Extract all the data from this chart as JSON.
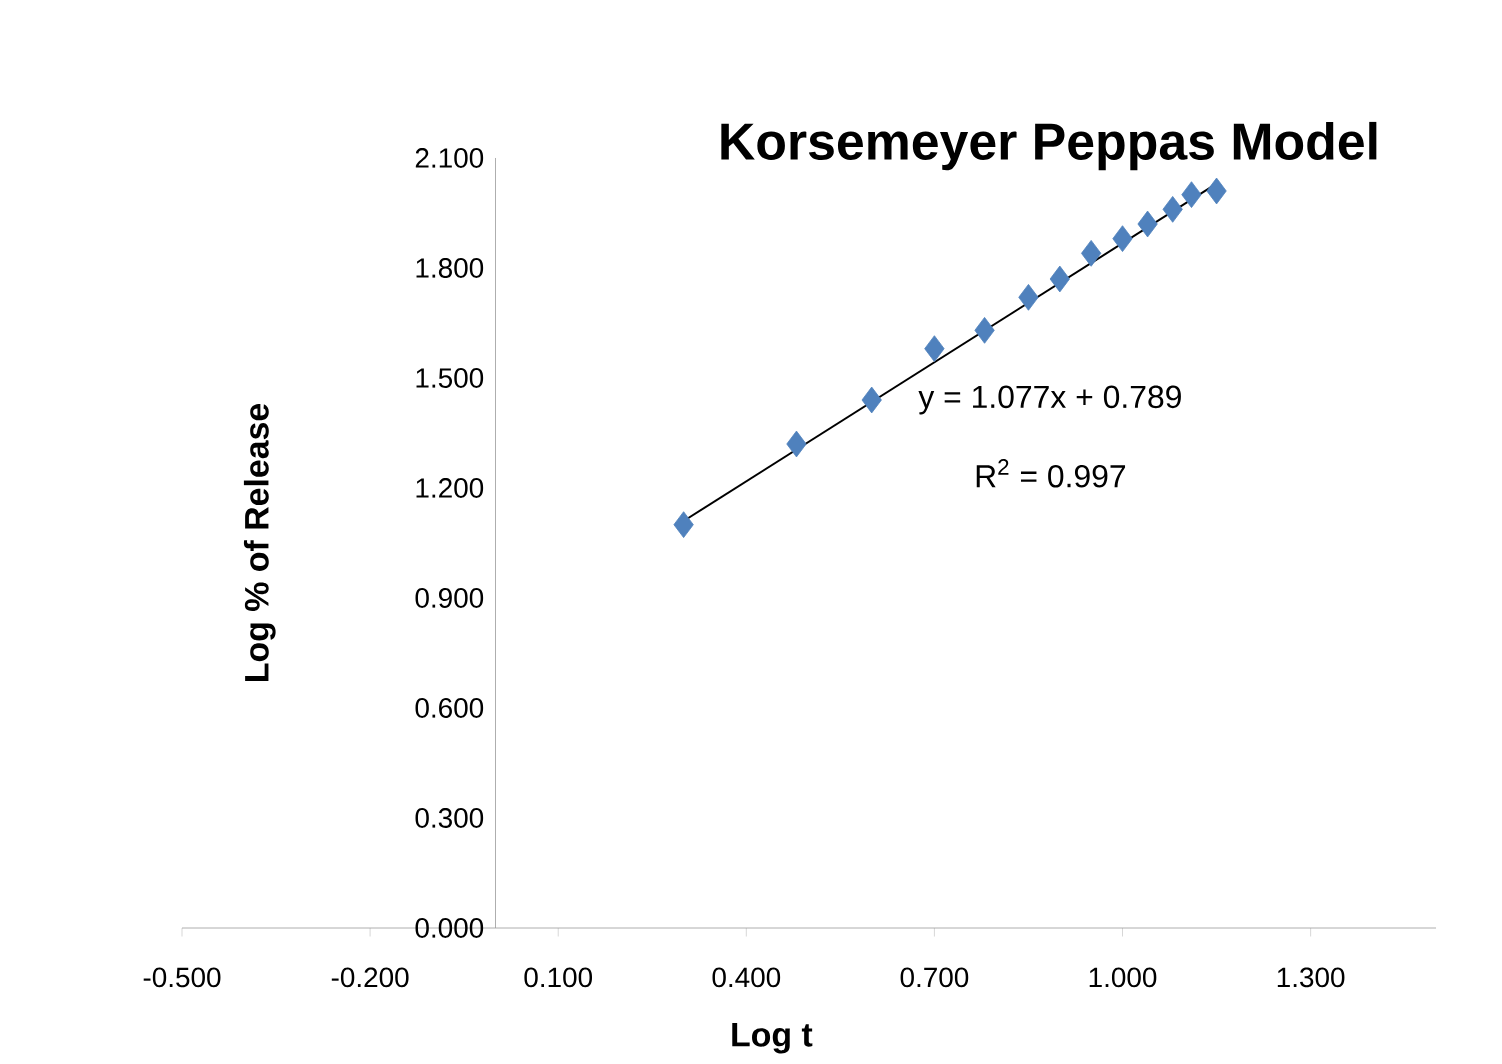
{
  "chart_data": {
    "type": "scatter",
    "title": "Korsemeyer Peppas Model",
    "xlabel": "Log t",
    "ylabel": "Log % of Release",
    "x": [
      0.3,
      0.48,
      0.6,
      0.7,
      0.78,
      0.85,
      0.9,
      0.95,
      1.0,
      1.04,
      1.08,
      1.11,
      1.15
    ],
    "series": [
      {
        "color": "#4f81bd",
        "marker": "diamond",
        "values": [
          1.1,
          1.32,
          1.44,
          1.58,
          1.63,
          1.72,
          1.77,
          1.84,
          1.88,
          1.92,
          1.96,
          2.0,
          2.01
        ]
      },
      {
        "type": "line",
        "color": "#000000",
        "x": [
          0.3,
          1.15
        ],
        "values": [
          1.11,
          2.03
        ]
      }
    ],
    "annotations": [
      "y = 1.077x + 0.789",
      "R$^{2}$ = 0.997"
    ],
    "xlim": [
      -0.5,
      1.5
    ],
    "ylim": [
      0,
      2.1
    ],
    "xticks": [
      {
        "value": -0.5,
        "label": "-0.500"
      },
      {
        "value": -0.2,
        "label": "-0.200"
      },
      {
        "value": 0.1,
        "label": "0.100"
      },
      {
        "value": 0.4,
        "label": "0.400"
      },
      {
        "value": 0.7,
        "label": "0.700"
      },
      {
        "value": 1.0,
        "label": "1.000"
      },
      {
        "value": 1.3,
        "label": "1.300"
      }
    ],
    "yticks": [
      {
        "value": 0,
        "label": "0.000"
      },
      {
        "value": 0.3,
        "label": "0.300"
      },
      {
        "value": 0.6,
        "label": "0.600"
      },
      {
        "value": 0.9,
        "label": "0.900"
      },
      {
        "value": 1.2,
        "label": "1.200"
      },
      {
        "value": 1.5,
        "label": "1.500"
      },
      {
        "value": 1.8,
        "label": "1.800"
      },
      {
        "value": 2.1,
        "label": "2.100"
      }
    ],
    "grid": false
  }
}
